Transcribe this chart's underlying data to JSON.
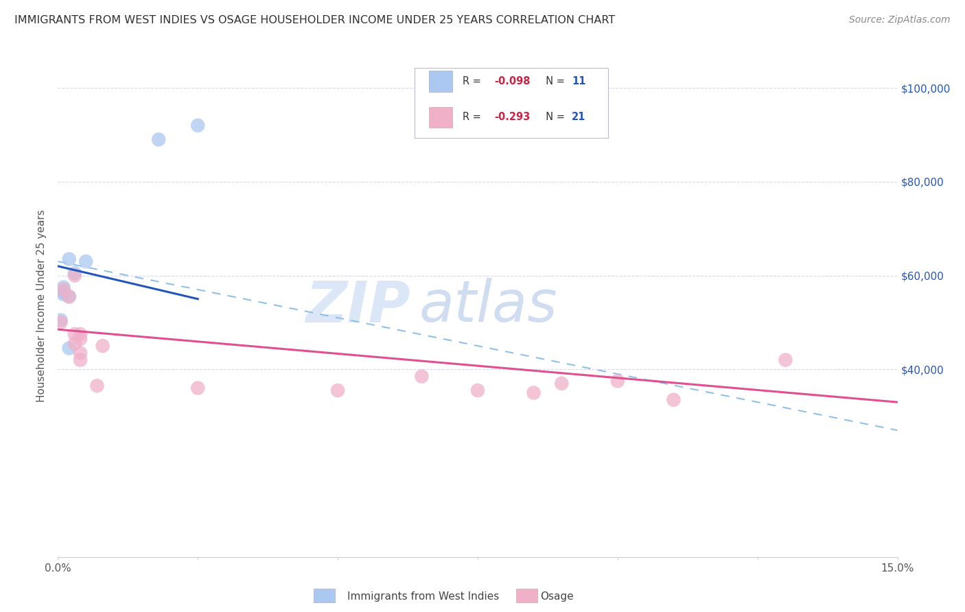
{
  "title": "IMMIGRANTS FROM WEST INDIES VS OSAGE HOUSEHOLDER INCOME UNDER 25 YEARS CORRELATION CHART",
  "source": "Source: ZipAtlas.com",
  "ylabel": "Householder Income Under 25 years",
  "ylim": [
    0,
    107000
  ],
  "xlim": [
    0,
    0.15
  ],
  "yticks": [
    40000,
    60000,
    80000,
    100000
  ],
  "ytick_labels": [
    "$40,000",
    "$60,000",
    "$80,000",
    "$100,000"
  ],
  "xticks": [
    0.0,
    0.025,
    0.05,
    0.075,
    0.1,
    0.125,
    0.15
  ],
  "legend_label_blue": "Immigrants from West Indies",
  "legend_label_pink": "Osage",
  "blue_color": "#aac8f0",
  "pink_color": "#f0b0c8",
  "blue_line_color": "#2255bb",
  "pink_line_color": "#e05090",
  "dashed_line_color": "#90c0e8",
  "watermark_zip": "ZIP",
  "watermark_atlas": "atlas",
  "blue_r": "-0.098",
  "blue_n": "11",
  "pink_r": "-0.293",
  "pink_n": "21",
  "blue_points_x": [
    0.003,
    0.005,
    0.001,
    0.001,
    0.002,
    0.002,
    0.001,
    0.0005,
    0.002,
    0.025,
    0.018
  ],
  "blue_points_y": [
    60500,
    63000,
    57500,
    56000,
    55500,
    63500,
    56500,
    50500,
    44500,
    92000,
    89000
  ],
  "pink_points_x": [
    0.0005,
    0.001,
    0.002,
    0.003,
    0.003,
    0.004,
    0.004,
    0.003,
    0.004,
    0.004,
    0.007,
    0.008,
    0.025,
    0.05,
    0.065,
    0.075,
    0.09,
    0.1,
    0.11,
    0.085,
    0.13
  ],
  "pink_points_y": [
    50000,
    57000,
    55500,
    47500,
    60000,
    47500,
    46500,
    45500,
    43500,
    42000,
    36500,
    45000,
    36000,
    35500,
    38500,
    35500,
    37000,
    37500,
    33500,
    35000,
    42000
  ],
  "blue_line_x": [
    0.0,
    0.025
  ],
  "blue_line_y": [
    62000,
    55000
  ],
  "pink_line_x": [
    0.0,
    0.15
  ],
  "pink_line_y": [
    48500,
    33000
  ],
  "dash_line_x": [
    0.0,
    0.15
  ],
  "dash_line_y": [
    63000,
    27000
  ],
  "background_color": "#ffffff",
  "grid_color": "#d8d8e8",
  "title_color": "#303030",
  "right_label_color": "#2255bb",
  "source_color": "#888888"
}
